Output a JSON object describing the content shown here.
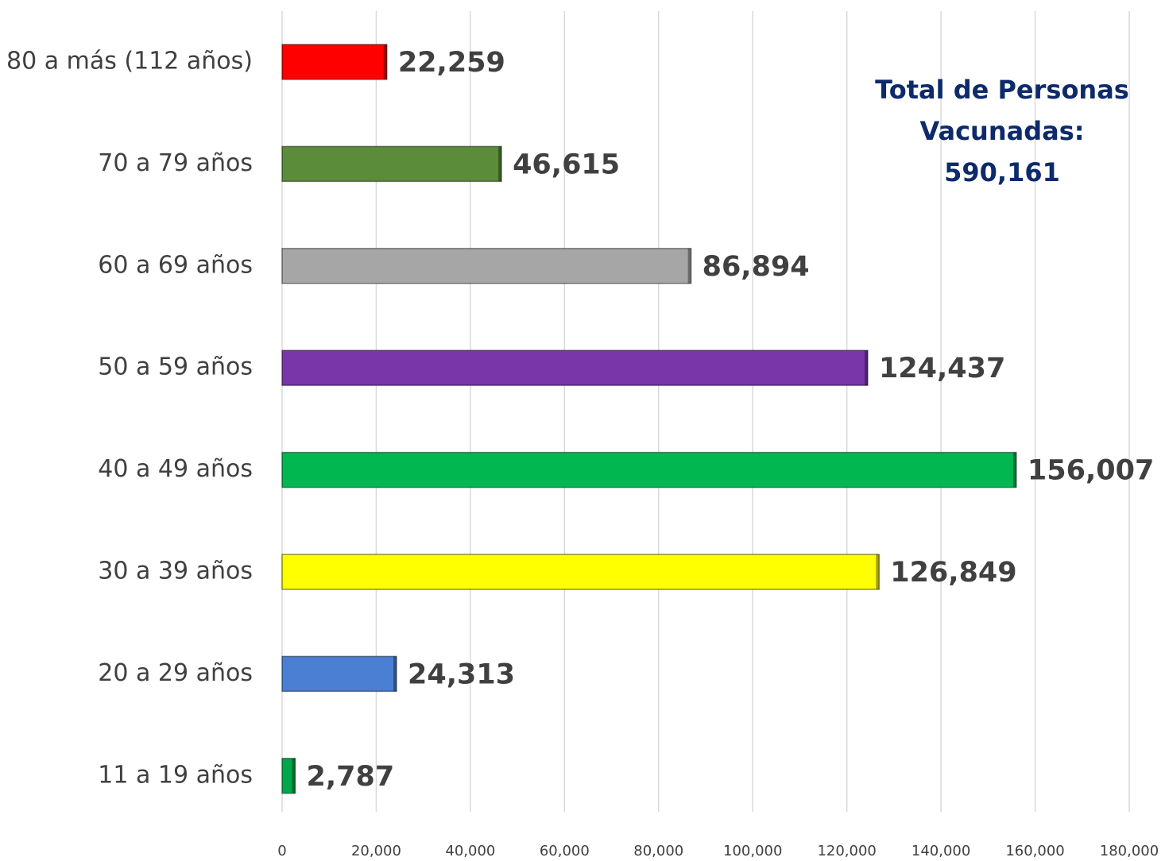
{
  "chart_data": {
    "type": "barh",
    "categories": [
      "80 a más (112 años)",
      "70 a 79 años",
      "60 a 69 años",
      "50 a 59 años",
      "40 a 49 años",
      "30 a 39 años",
      "20 a 29 años",
      "11 a 19 años"
    ],
    "values": [
      22259,
      46615,
      86894,
      124437,
      156007,
      126849,
      24313,
      2787
    ],
    "value_labels": [
      "22,259",
      "46,615",
      "86,894",
      "124,437",
      "156,007",
      "126,849",
      "24,313",
      "2,787"
    ],
    "colors": [
      "#ff0000",
      "#5b8c3a",
      "#a6a6a6",
      "#7836a8",
      "#00b84f",
      "#ffff00",
      "#4a7fd4",
      "#00a84a"
    ],
    "xlim": [
      0,
      180000
    ],
    "xticks": [
      0,
      {
        "value": 20000,
        "label": "20,000"
      },
      {
        "value": 40000,
        "label": "40,000"
      },
      {
        "value": 60000,
        "label": "60,000"
      },
      {
        "value": 80000,
        "label": "80,000"
      },
      {
        "value": 100000,
        "label": "100,000"
      },
      {
        "value": 120000,
        "label": "120,000"
      },
      {
        "value": 140000,
        "label": "140,000"
      },
      {
        "value": 160000,
        "label": "160,000"
      },
      {
        "value": 180000,
        "label": "180,000"
      }
    ],
    "grid": true,
    "annotation": [
      "Total de Personas",
      "Vacunadas:",
      "590,161"
    ]
  }
}
